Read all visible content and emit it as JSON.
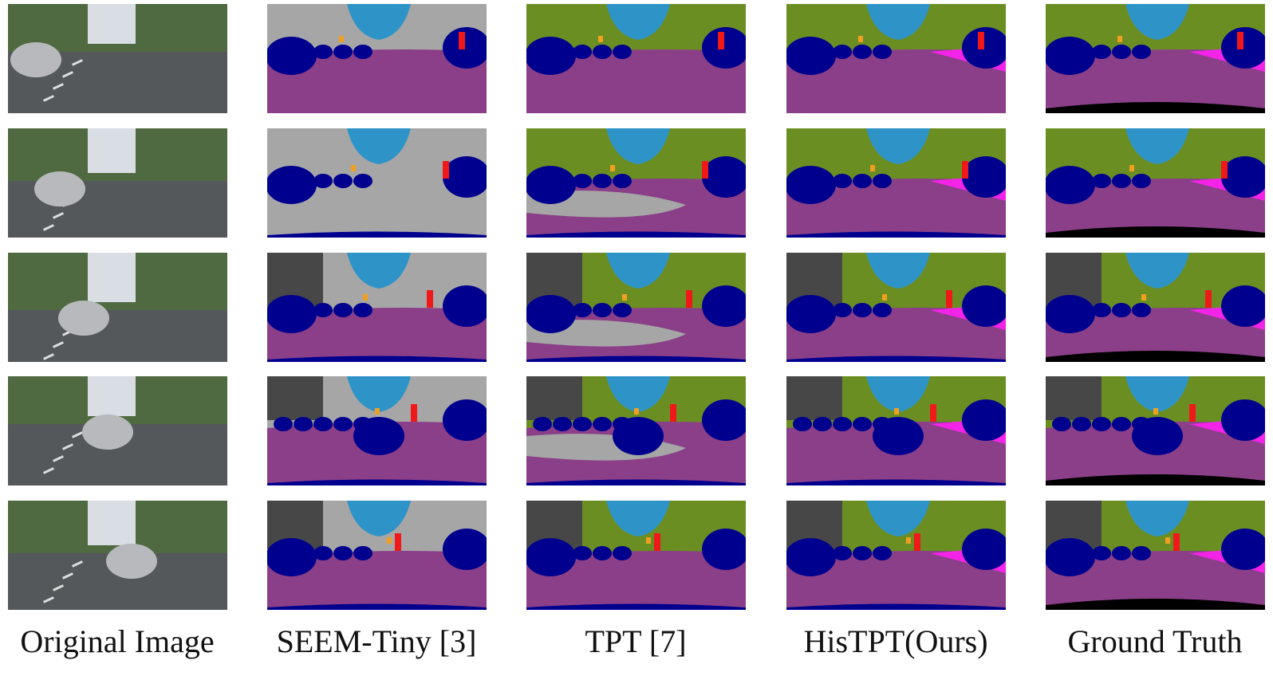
{
  "figure": {
    "columns": [
      "Original Image",
      "SEEM-Tiny [3]",
      "TPT [7]",
      "HisTPT(Ours)",
      "Ground Truth"
    ]
  }
}
